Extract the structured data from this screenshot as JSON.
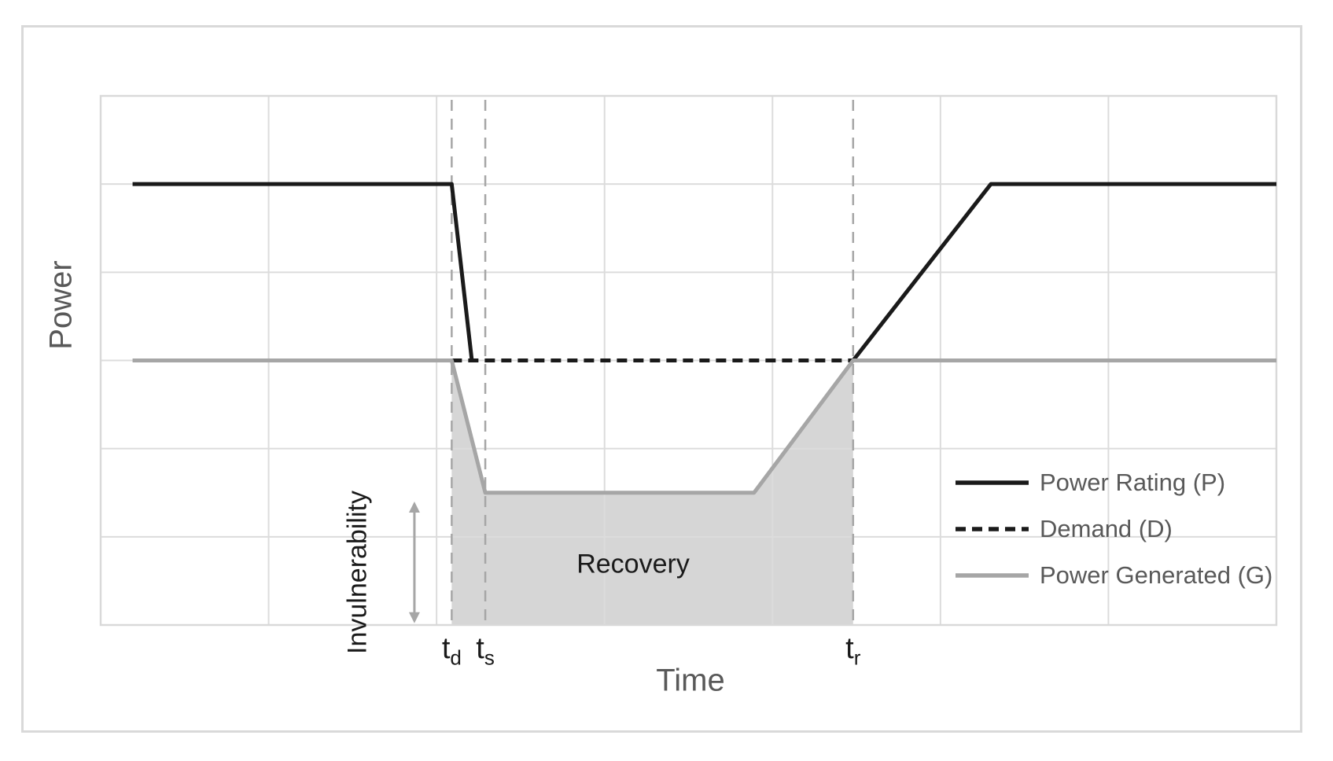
{
  "colors": {
    "grid": "#dcdcdc",
    "plot_border": "#d9d9d9",
    "frame_border": "#d9d9d9",
    "shade": "#d6d6d6",
    "event_line": "#a6a6a6",
    "gray_line": "#a6a6a6",
    "black_line": "#1a1a1a",
    "muted_text": "#595959",
    "dark_text": "#1a1a1a"
  },
  "chart_data": {
    "type": "line",
    "title": "",
    "xlabel": "Time",
    "ylabel": "Power",
    "xlim": [
      0,
      7
    ],
    "ylim": [
      0,
      6
    ],
    "grid": true,
    "x_tick_labels": [],
    "y_tick_labels": [],
    "legend_position": "inside-right",
    "series": [
      {
        "id": "power-rating",
        "name": "Power Rating (P)",
        "color": "#1a1a1a",
        "width": 5,
        "dash": "",
        "segments": [
          [
            [
              0.19,
              5
            ],
            [
              2.09,
              5
            ],
            [
              2.21,
              3
            ]
          ],
          [
            [
              4.48,
              3
            ],
            [
              5.3,
              5
            ],
            [
              7,
              5
            ]
          ]
        ]
      },
      {
        "id": "demand",
        "name": "Demand (D)",
        "color": "#1a1a1a",
        "width": 5,
        "dash": "13 8",
        "segments": [
          [
            [
              2.09,
              3
            ],
            [
              4.48,
              3
            ]
          ]
        ]
      },
      {
        "id": "power-generated",
        "name": "Power Generated (G)",
        "color": "#a6a6a6",
        "width": 5,
        "dash": "",
        "segments": [
          [
            [
              0.19,
              3
            ],
            [
              2.09,
              3
            ],
            [
              2.29,
              1.5
            ],
            [
              3.89,
              1.5
            ],
            [
              4.48,
              3
            ],
            [
              7,
              3
            ]
          ]
        ]
      }
    ],
    "levels": {
      "power_rating": 5,
      "demand": 3,
      "generation_low": 1.5
    },
    "shaded_region": {
      "name": "recovery-area",
      "color": "#d6d6d6",
      "points": [
        [
          2.09,
          3
        ],
        [
          2.29,
          1.5
        ],
        [
          3.89,
          1.5
        ],
        [
          4.48,
          3
        ],
        [
          4.48,
          0
        ],
        [
          2.09,
          0
        ]
      ]
    },
    "event_lines": [
      {
        "x": 2.09,
        "label": "t",
        "sub": "d"
      },
      {
        "x": 2.29,
        "label": "t",
        "sub": "s"
      },
      {
        "x": 4.48,
        "label": "t",
        "sub": "r"
      }
    ],
    "annotations": {
      "recovery": {
        "text": "Recovery",
        "x": 3.17,
        "y": 0.69
      },
      "invulnerability": {
        "text": "Invulnerability",
        "x": 1.53,
        "y": 0.6,
        "rotated": true
      },
      "arrow": {
        "x": 1.868,
        "y1": 0.02,
        "y2": 1.4
      }
    },
    "legend": [
      {
        "label": "Power Rating (P)",
        "color": "#1a1a1a",
        "dash": ""
      },
      {
        "label": "Demand (D)",
        "color": "#1a1a1a",
        "dash": "13 8"
      },
      {
        "label": "Power Generated (G)",
        "color": "#a6a6a6",
        "dash": ""
      }
    ]
  }
}
